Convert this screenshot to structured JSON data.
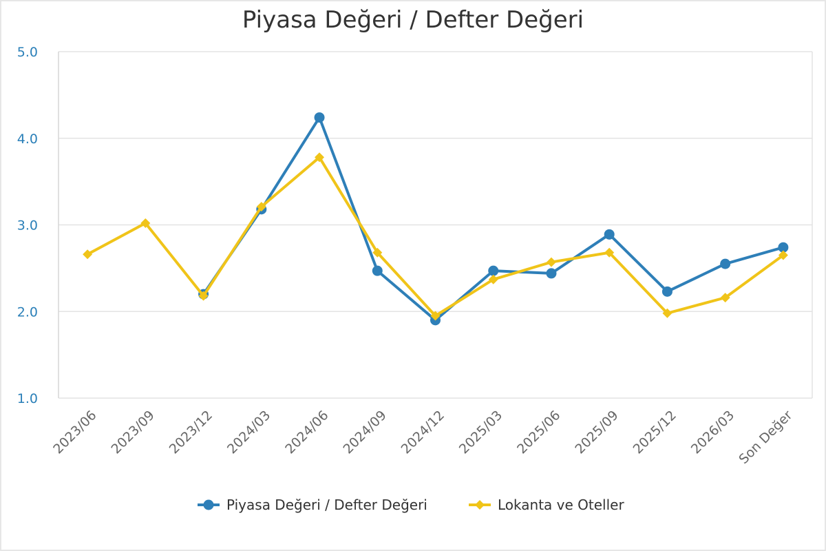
{
  "chart_data": {
    "type": "line",
    "title": "Piyasa Değeri / Defter Değeri",
    "categories": [
      "2023/06",
      "2023/09",
      "2023/12",
      "2024/03",
      "2024/06",
      "2024/09",
      "2024/12",
      "2025/03",
      "2025/06",
      "2025/09",
      "2025/12",
      "2026/03",
      "Son Değer"
    ],
    "y_ticks": [
      "1.0",
      "2.0",
      "3.0",
      "4.0",
      "5.0"
    ],
    "ylim": [
      1.0,
      5.0
    ],
    "grid": true,
    "legend_position": "bottom-center",
    "series": [
      {
        "name": "Piyasa Değeri / Defter Değeri",
        "color": "#2e7fb8",
        "marker": "circle",
        "values": [
          null,
          null,
          2.2,
          3.18,
          4.24,
          2.47,
          1.9,
          2.47,
          2.44,
          2.89,
          2.23,
          2.55,
          2.74
        ]
      },
      {
        "name": "Lokanta ve Oteller",
        "color": "#f0c419",
        "marker": "diamond",
        "values": [
          2.66,
          3.02,
          2.18,
          3.21,
          3.78,
          2.68,
          1.95,
          2.37,
          2.57,
          2.68,
          1.98,
          2.16,
          2.65
        ]
      }
    ]
  }
}
